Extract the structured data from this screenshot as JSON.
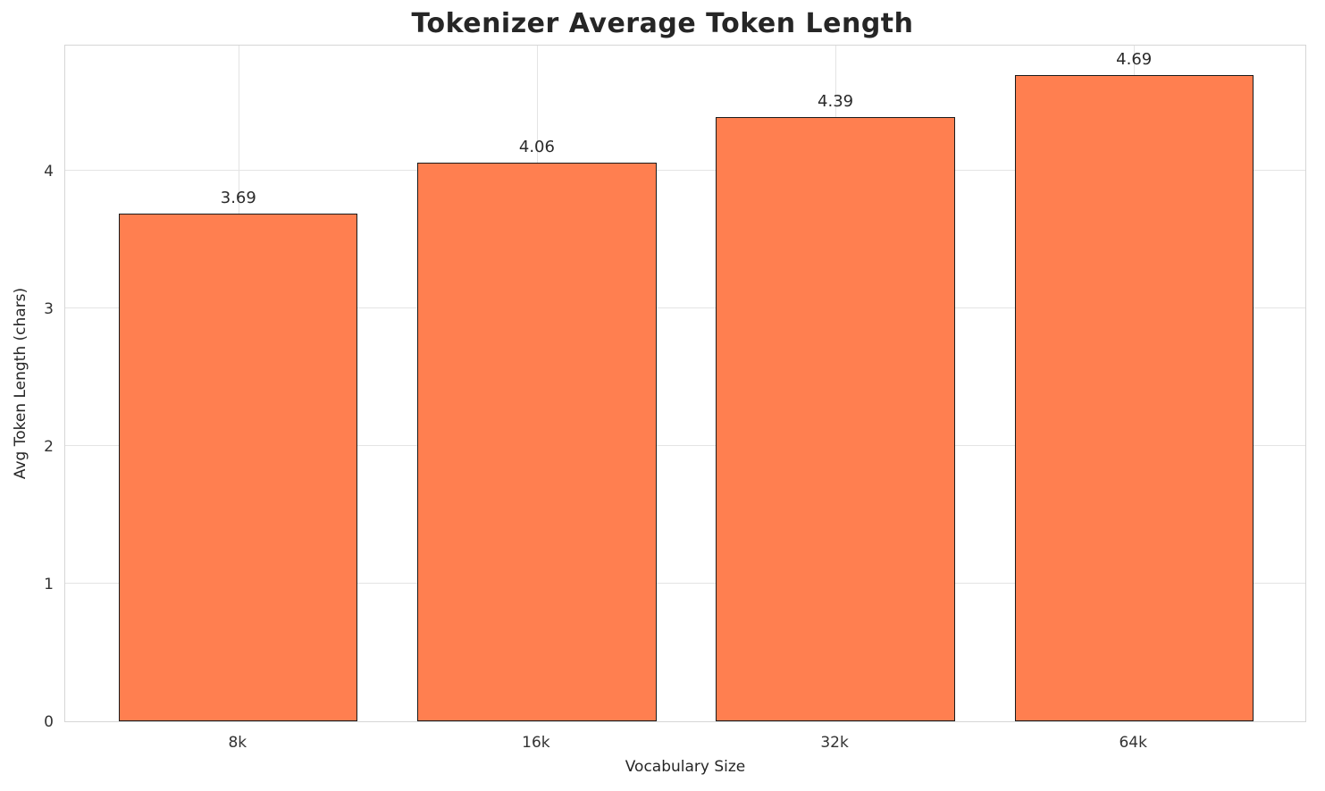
{
  "chart_data": {
    "type": "bar",
    "title": "Tokenizer Average Token Length",
    "xlabel": "Vocabulary Size",
    "ylabel": "Avg Token Length (chars)",
    "categories": [
      "8k",
      "16k",
      "32k",
      "64k"
    ],
    "values": [
      3.69,
      4.06,
      4.39,
      4.69
    ],
    "value_labels": [
      "3.69",
      "4.06",
      "4.39",
      "4.69"
    ],
    "yticks": [
      0,
      1,
      2,
      3,
      4
    ],
    "ytick_labels": [
      "0",
      "1",
      "2",
      "3",
      "4"
    ],
    "ylim": [
      0,
      4.92
    ],
    "bar_color": "#FF7F50",
    "bar_edge_color": "#1a1a1a",
    "grid": true,
    "legend": "none"
  }
}
